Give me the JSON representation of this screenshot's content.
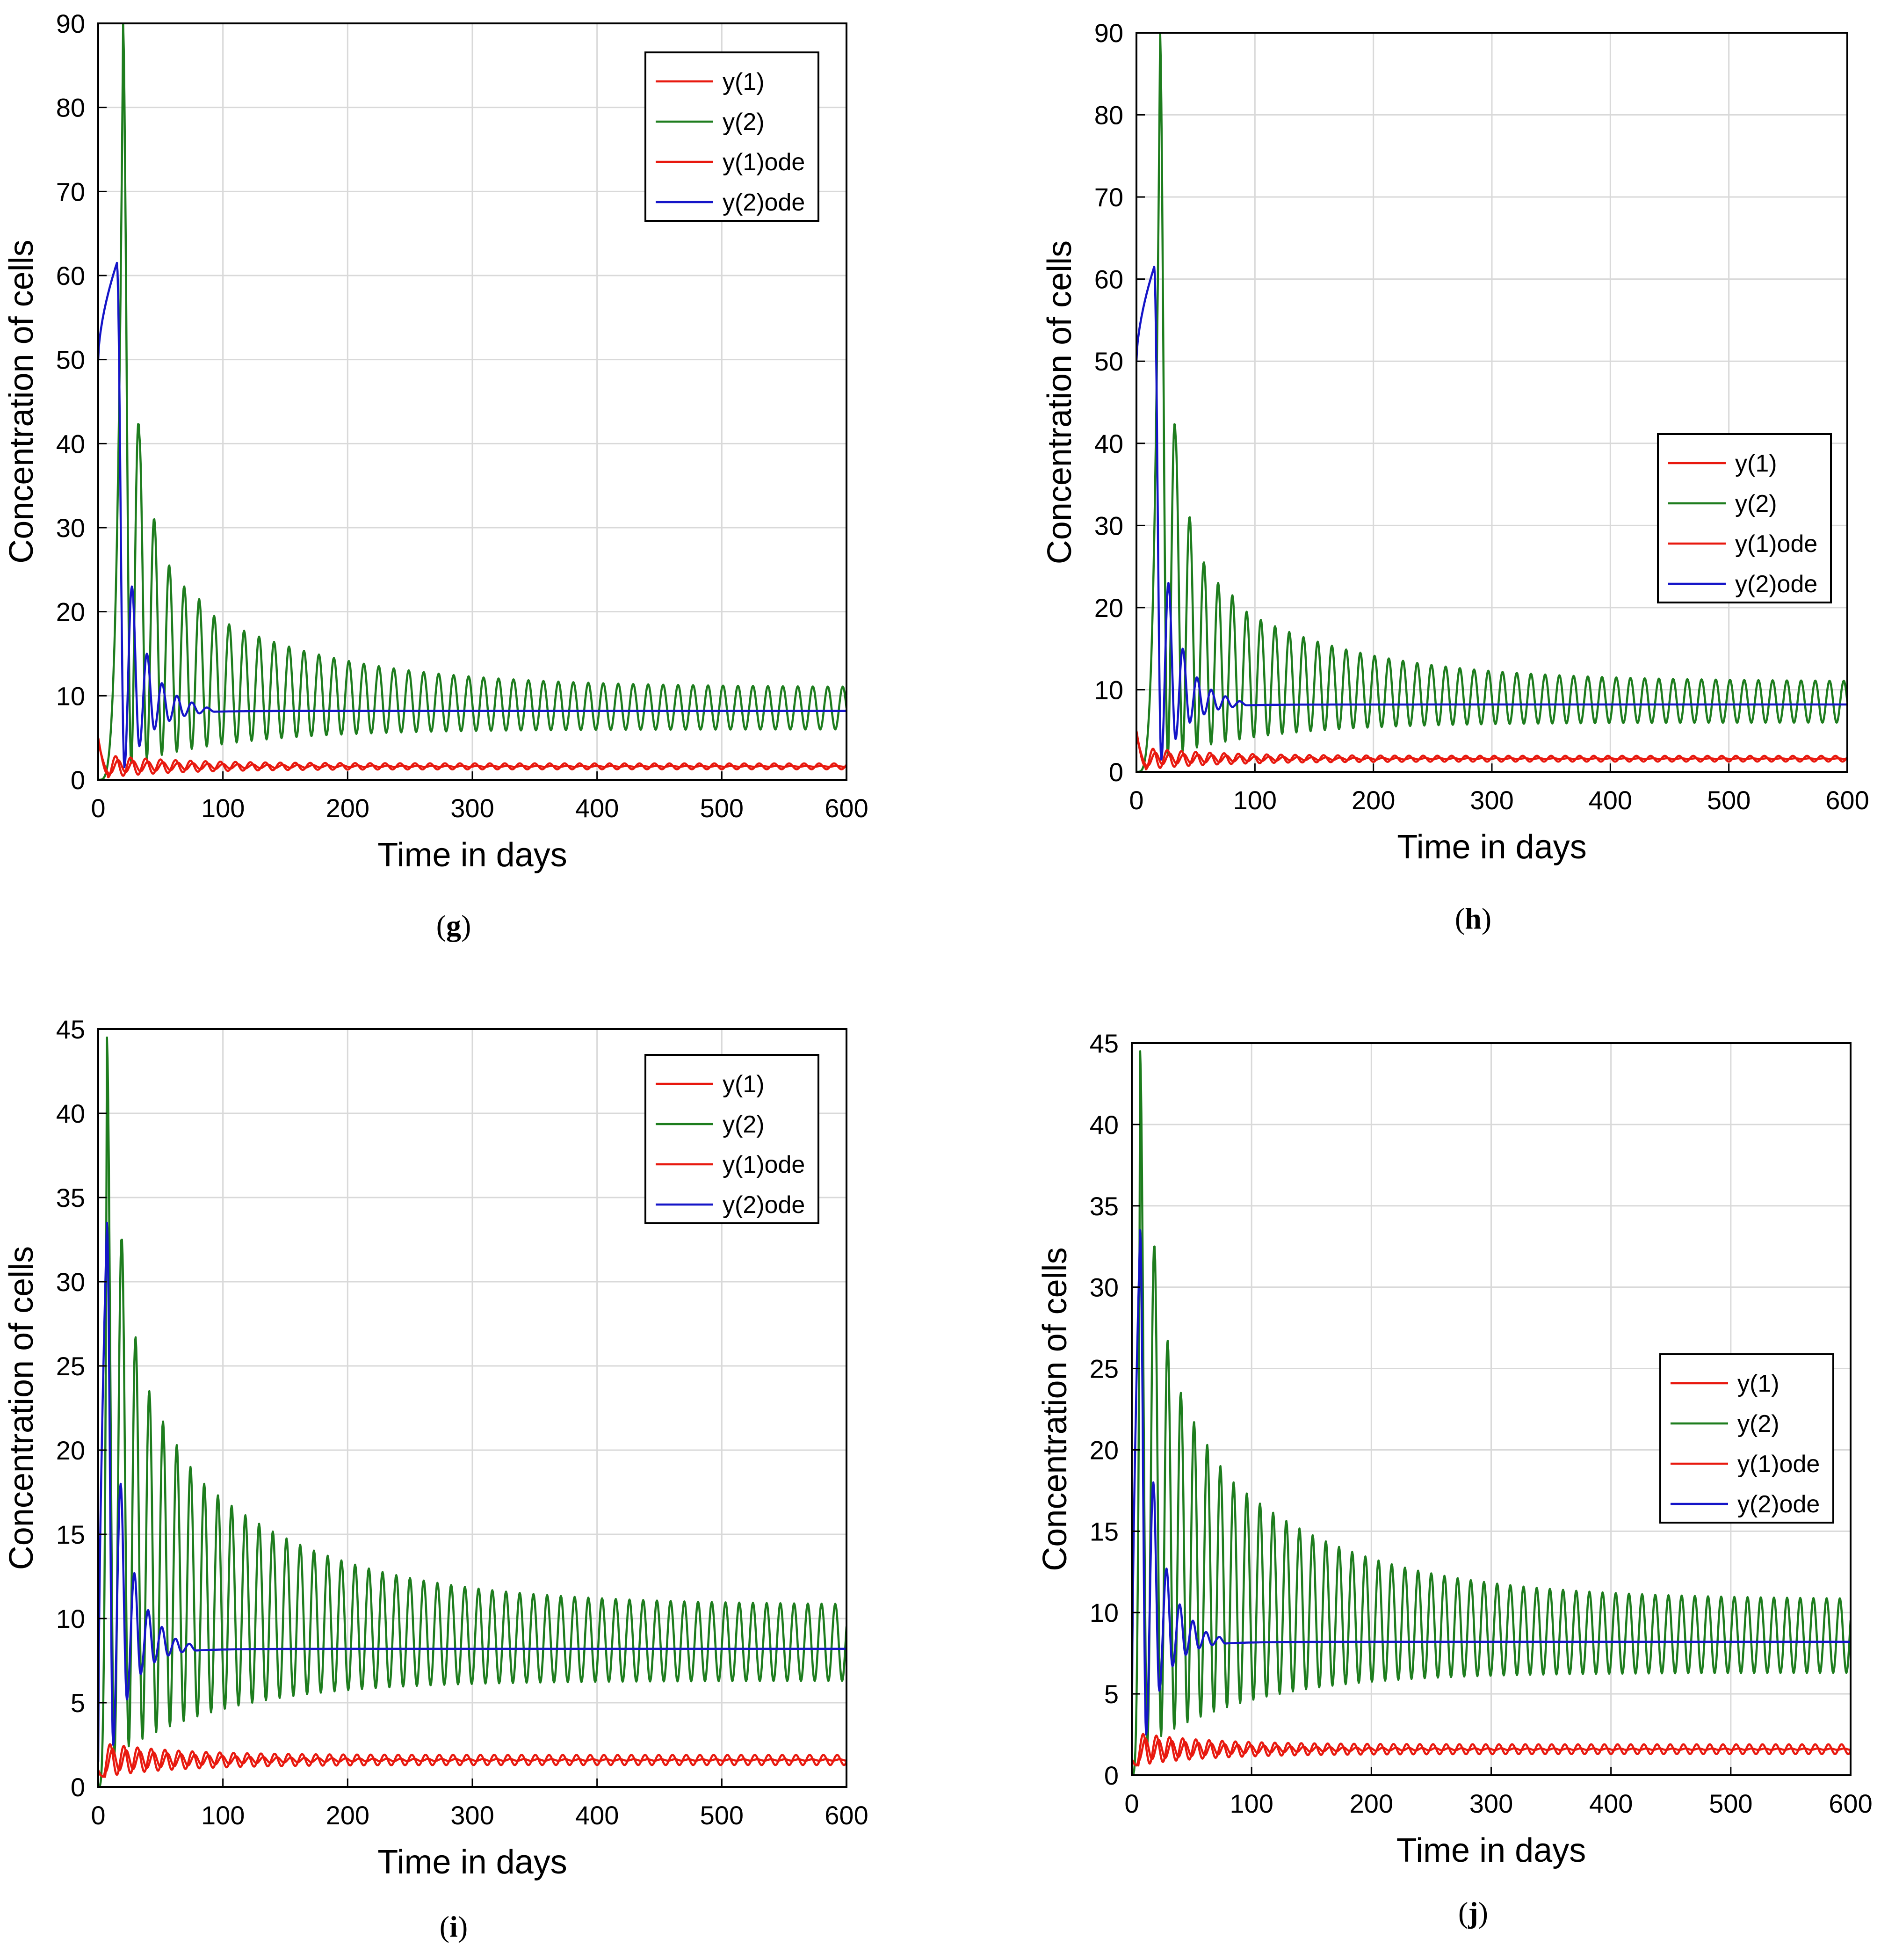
{
  "colors": {
    "y1": "#e8190f",
    "y2": "#1e7d1e",
    "y1ode": "#e8190f",
    "y2ode": "#1515c8",
    "grid": "#d9d9d9",
    "axis": "#000000"
  },
  "chart_data": [
    {
      "id": "g",
      "caption": "g",
      "type": "line",
      "xlabel": "Time in days",
      "ylabel": "Concentration of cells",
      "xlim": [
        0,
        600
      ],
      "ylim": [
        0,
        90
      ],
      "xticks": [
        0,
        100,
        200,
        300,
        400,
        500,
        600
      ],
      "yticks": [
        0,
        10,
        20,
        30,
        40,
        50,
        60,
        70,
        80,
        90
      ],
      "grid": true,
      "legend_position": "top-right",
      "legend": [
        "y(1)",
        "y(2)",
        "y(1)ode",
        "y(2)ode"
      ],
      "series": [
        {
          "name": "y(1)",
          "key": "y1",
          "model": "osc",
          "y0": 5,
          "mean": 1.6,
          "amp0": 1.3,
          "ampInf": 0.35,
          "period": 12,
          "decay": 60,
          "tStart": 8
        },
        {
          "name": "y(2)",
          "key": "y2",
          "model": "spikes",
          "y0": 0,
          "mean": 8.5,
          "ampInf": 2.5,
          "period": 12,
          "tStart": 8,
          "peaks": [
            [
              20,
              90
            ],
            [
              33,
              41
            ],
            [
              45,
              31
            ],
            [
              57,
              25.5
            ],
            [
              69,
              23
            ],
            [
              81,
              21.5
            ],
            [
              93,
              19.5
            ],
            [
              105,
              18.5
            ]
          ],
          "troughPeak": 1,
          "troughInf": 6
        },
        {
          "name": "y(1)ode",
          "key": "y1ode",
          "model": "osc",
          "y0": 4.5,
          "mean": 1.6,
          "amp0": 0.8,
          "ampInf": 0.05,
          "period": 12,
          "decay": 80,
          "tStart": 10
        },
        {
          "name": "y(2)ode",
          "key": "y2ode",
          "model": "damped",
          "y0": 50,
          "mean": 8.2,
          "peaks": [
            [
              15,
              61.5
            ],
            [
              27,
              23
            ],
            [
              39,
              15
            ],
            [
              51,
              11.5
            ],
            [
              63,
              10
            ],
            [
              75,
              9.2
            ],
            [
              87,
              8.6
            ]
          ],
          "troughs": [
            [
              21,
              1.5
            ],
            [
              33,
              4
            ],
            [
              45,
              6
            ],
            [
              57,
              7
            ],
            [
              69,
              7.6
            ],
            [
              81,
              7.9
            ],
            [
              93,
              8.1
            ]
          ]
        }
      ]
    },
    {
      "id": "h",
      "caption": "h",
      "type": "line",
      "xlabel": "Time in days",
      "ylabel": "Concentration of cells",
      "xlim": [
        0,
        600
      ],
      "ylim": [
        0,
        90
      ],
      "xticks": [
        0,
        100,
        200,
        300,
        400,
        500,
        600
      ],
      "yticks": [
        0,
        10,
        20,
        30,
        40,
        50,
        60,
        70,
        80,
        90
      ],
      "grid": true,
      "legend_position": "middle-right",
      "legend": [
        "y(1)",
        "y(2)",
        "y(1)ode",
        "y(2)ode"
      ],
      "series": [
        {
          "name": "y(1)",
          "key": "y1",
          "model": "osc",
          "y0": 5,
          "mean": 1.6,
          "amp0": 1.3,
          "ampInf": 0.35,
          "period": 12,
          "decay": 60,
          "tStart": 8
        },
        {
          "name": "y(2)",
          "key": "y2",
          "model": "spikes",
          "y0": 0,
          "mean": 8.5,
          "ampInf": 2.5,
          "period": 12,
          "tStart": 8,
          "peaks": [
            [
              20,
              90
            ],
            [
              33,
              41
            ],
            [
              45,
              31
            ],
            [
              57,
              25.5
            ],
            [
              69,
              23
            ],
            [
              81,
              21.5
            ],
            [
              93,
              19.5
            ],
            [
              105,
              18.5
            ]
          ],
          "troughPeak": 1,
          "troughInf": 6
        },
        {
          "name": "y(1)ode",
          "key": "y1ode",
          "model": "osc",
          "y0": 4.5,
          "mean": 1.6,
          "amp0": 0.8,
          "ampInf": 0.05,
          "period": 12,
          "decay": 80,
          "tStart": 10
        },
        {
          "name": "y(2)ode",
          "key": "y2ode",
          "model": "damped",
          "y0": 50,
          "mean": 8.2,
          "peaks": [
            [
              15,
              61.5
            ],
            [
              27,
              23
            ],
            [
              39,
              15
            ],
            [
              51,
              11.5
            ],
            [
              63,
              10
            ],
            [
              75,
              9.2
            ],
            [
              87,
              8.6
            ]
          ],
          "troughs": [
            [
              21,
              1.5
            ],
            [
              33,
              4
            ],
            [
              45,
              6
            ],
            [
              57,
              7
            ],
            [
              69,
              7.6
            ],
            [
              81,
              7.9
            ],
            [
              93,
              8.1
            ]
          ]
        }
      ]
    },
    {
      "id": "i",
      "caption": "i",
      "type": "line",
      "xlabel": "Time in days",
      "ylabel": "Concentration of cells",
      "xlim": [
        0,
        600
      ],
      "ylim": [
        0,
        45
      ],
      "xticks": [
        0,
        100,
        200,
        300,
        400,
        500,
        600
      ],
      "yticks": [
        0,
        5,
        10,
        15,
        20,
        25,
        30,
        35,
        40,
        45
      ],
      "grid": true,
      "legend_position": "top-right",
      "legend": [
        "y(1)",
        "y(2)",
        "y(1)ode",
        "y(2)ode"
      ],
      "series": [
        {
          "name": "y(1)",
          "key": "y1",
          "model": "osc",
          "y0": 1,
          "mean": 1.6,
          "amp0": 1.0,
          "ampInf": 0.3,
          "period": 11,
          "decay": 60,
          "tStart": 4
        },
        {
          "name": "y(2)",
          "key": "y2",
          "model": "spikes",
          "y0": 0,
          "mean": 8.5,
          "ampInf": 2.3,
          "period": 11,
          "tStart": 4,
          "peaks": [
            [
              7,
              44.5
            ],
            [
              19,
              32.5
            ],
            [
              30,
              26.7
            ],
            [
              41,
              23.5
            ],
            [
              52,
              21.7
            ],
            [
              63,
              20.3
            ],
            [
              74,
              19
            ],
            [
              85,
              18
            ]
          ],
          "troughPeak": 1.5,
          "troughInf": 6.3
        },
        {
          "name": "y(1)ode",
          "key": "y1ode",
          "model": "osc",
          "y0": 0.8,
          "mean": 1.6,
          "amp0": 0.7,
          "ampInf": 0.04,
          "period": 11,
          "decay": 80,
          "tStart": 6
        },
        {
          "name": "y(2)ode",
          "key": "y2ode",
          "model": "damped",
          "y0": 1.5,
          "mean": 8.2,
          "peaks": [
            [
              7,
              33.5
            ],
            [
              18,
              18
            ],
            [
              29,
              12.7
            ],
            [
              40,
              10.5
            ],
            [
              51,
              9.5
            ],
            [
              62,
              8.8
            ],
            [
              73,
              8.5
            ]
          ],
          "troughs": [
            [
              12,
              2.5
            ],
            [
              23,
              5.2
            ],
            [
              34,
              6.7
            ],
            [
              45,
              7.4
            ],
            [
              56,
              7.8
            ],
            [
              67,
              8.0
            ],
            [
              78,
              8.1
            ]
          ]
        }
      ]
    },
    {
      "id": "j",
      "caption": "j",
      "type": "line",
      "xlabel": "Time in days",
      "ylabel": "Concentration of cells",
      "xlim": [
        0,
        600
      ],
      "ylim": [
        0,
        45
      ],
      "xticks": [
        0,
        100,
        200,
        300,
        400,
        500,
        600
      ],
      "yticks": [
        0,
        5,
        10,
        15,
        20,
        25,
        30,
        35,
        40,
        45
      ],
      "grid": true,
      "legend_position": "middle-right",
      "legend": [
        "y(1)",
        "y(2)",
        "y(1)ode",
        "y(2)ode"
      ],
      "series": [
        {
          "name": "y(1)",
          "key": "y1",
          "model": "osc",
          "y0": 1,
          "mean": 1.6,
          "amp0": 1.0,
          "ampInf": 0.3,
          "period": 11,
          "decay": 60,
          "tStart": 4
        },
        {
          "name": "y(2)",
          "key": "y2",
          "model": "spikes",
          "y0": 0,
          "mean": 8.5,
          "ampInf": 2.3,
          "period": 11,
          "tStart": 4,
          "peaks": [
            [
              7,
              44.5
            ],
            [
              19,
              32.5
            ],
            [
              30,
              26.7
            ],
            [
              41,
              23.5
            ],
            [
              52,
              21.7
            ],
            [
              63,
              20.3
            ],
            [
              74,
              19
            ],
            [
              85,
              18
            ]
          ],
          "troughPeak": 1.5,
          "troughInf": 6.3
        },
        {
          "name": "y(1)ode",
          "key": "y1ode",
          "model": "osc",
          "y0": 0.8,
          "mean": 1.6,
          "amp0": 0.7,
          "ampInf": 0.04,
          "period": 11,
          "decay": 80,
          "tStart": 6
        },
        {
          "name": "y(2)ode",
          "key": "y2ode",
          "model": "damped",
          "y0": 1.5,
          "mean": 8.2,
          "peaks": [
            [
              7,
              33.5
            ],
            [
              18,
              18
            ],
            [
              29,
              12.7
            ],
            [
              40,
              10.5
            ],
            [
              51,
              9.5
            ],
            [
              62,
              8.8
            ],
            [
              73,
              8.5
            ]
          ],
          "troughs": [
            [
              12,
              2.5
            ],
            [
              23,
              5.2
            ],
            [
              34,
              6.7
            ],
            [
              45,
              7.4
            ],
            [
              56,
              7.8
            ],
            [
              67,
              8.0
            ],
            [
              78,
              8.1
            ]
          ]
        }
      ]
    }
  ]
}
